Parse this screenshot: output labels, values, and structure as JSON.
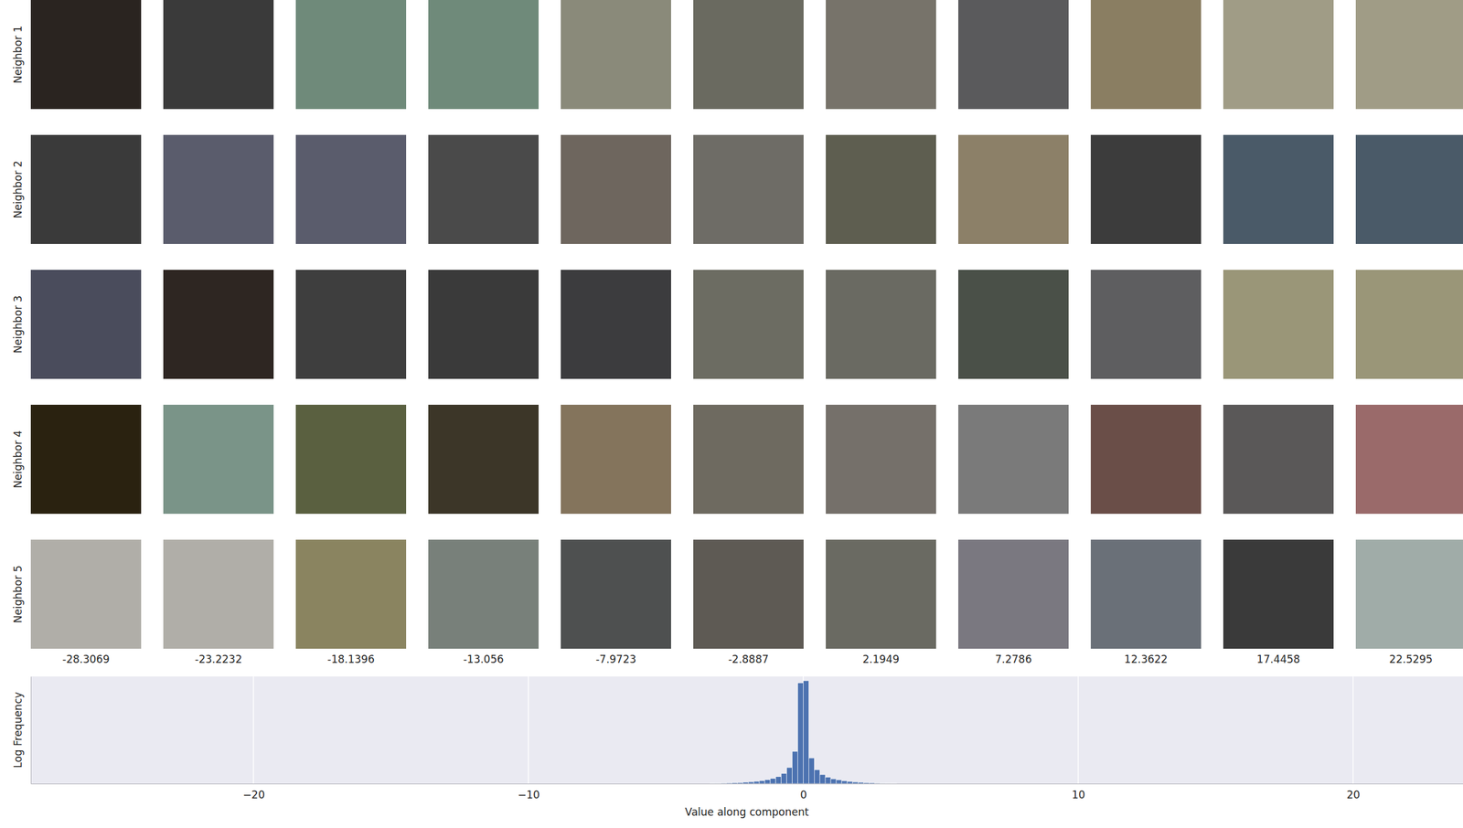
{
  "chart_data": [
    {
      "type": "image_grid",
      "rows": [
        "Neighbor 1",
        "Neighbor 2",
        "Neighbor 3",
        "Neighbor 4",
        "Neighbor 5"
      ],
      "x": [
        -28.3069,
        -23.2232,
        -18.1396,
        -13.056,
        -7.9723,
        -2.8887,
        2.1949,
        7.2786,
        12.3622,
        17.4458,
        22.5295
      ],
      "colors": [
        [
          "#2a2420",
          "#3a3a3a",
          "#6f8a7a",
          "#6f8a7a",
          "#8a8a7a",
          "#6a6a60",
          "#77736a",
          "#5a5a5c",
          "#8a7e62",
          "#a09c86",
          "#a09c86"
        ],
        [
          "#3a3a3a",
          "#5a5c6c",
          "#5a5c6c",
          "#4a4a4a",
          "#6e665e",
          "#6e6c66",
          "#5e5e50",
          "#8c8068",
          "#3c3c3c",
          "#4a5a68",
          "#4a5a68"
        ],
        [
          "#4a4c5c",
          "#2e2622",
          "#3e3e3e",
          "#3a3a3a",
          "#3c3c3e",
          "#6c6c62",
          "#6a6a62",
          "#4a5048",
          "#5e5e60",
          "#9a9678",
          "#9a9678"
        ],
        [
          "#2a2210",
          "#7a9488",
          "#5a6040",
          "#3c3628",
          "#84745c",
          "#6e6a60",
          "#75706a",
          "#7a7a7a",
          "#6a4e48",
          "#5a5858",
          "#9a6a6a"
        ],
        [
          "#b0aea8",
          "#b0aea8",
          "#8a8460",
          "#78807a",
          "#4e5050",
          "#5e5a54",
          "#6a6a62",
          "#7a7880",
          "#6a7078",
          "#3a3a3a",
          "#a0aca8"
        ]
      ]
    },
    {
      "type": "histogram",
      "x_label": "Value along component",
      "y_label": "Log Frequency",
      "bins": [
        -3.4,
        -3.2,
        -3.0,
        -2.8,
        -2.6,
        -2.4,
        -2.2,
        -2.0,
        -1.8,
        -1.6,
        -1.4,
        -1.2,
        -1.0,
        -0.8,
        -0.6,
        -0.4,
        -0.2,
        0.0,
        0.2,
        0.4,
        0.6,
        0.8,
        1.0,
        1.2,
        1.4,
        1.6,
        1.8,
        2.0,
        2.2,
        2.4,
        2.6,
        2.8,
        3.0,
        3.2,
        3.4
      ],
      "values": [
        0.3,
        0.4,
        0.5,
        0.6,
        0.8,
        1,
        1.3,
        1.7,
        2.2,
        2.8,
        3.6,
        4.8,
        6.5,
        9.5,
        15,
        30,
        94,
        96,
        24,
        13,
        8.5,
        6,
        4.5,
        3.5,
        2.7,
        2.1,
        1.6,
        1.2,
        0.9,
        0.7,
        0.5,
        0.4,
        0.3,
        0.2
      ],
      "color": "#4c72b0",
      "xlim": [
        -28.1,
        24.0
      ],
      "xticks": [
        {
          "value": -20,
          "label": "−20"
        },
        {
          "value": -10,
          "label": "−10"
        },
        0,
        10,
        20
      ],
      "ylim": [
        0,
        100
      ],
      "grid": true,
      "tick_labels": "x"
    }
  ]
}
